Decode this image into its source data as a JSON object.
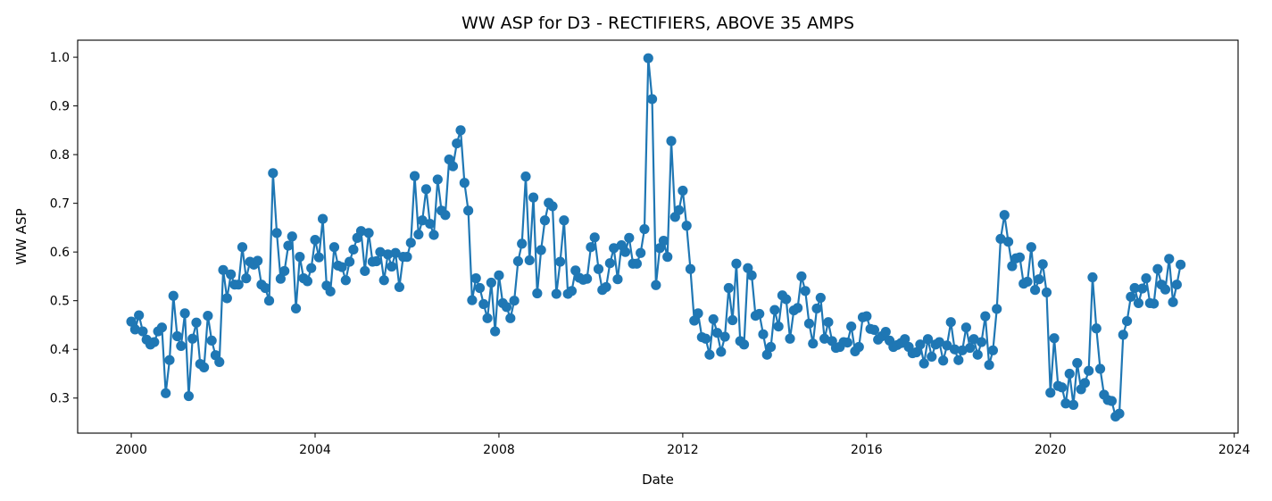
{
  "chart_data": {
    "type": "line",
    "title": "WW ASP for D3 - RECTIFIERS, ABOVE 35 AMPS",
    "xlabel": "Date",
    "ylabel": "WW ASP",
    "x_axis": "date",
    "xlim": [
      "1998-11-01",
      "2024-02-01"
    ],
    "ylim": [
      0.228,
      1.035
    ],
    "x_ticks": [
      "2000",
      "2004",
      "2008",
      "2012",
      "2016",
      "2020",
      "2024"
    ],
    "y_ticks": [
      "0.3",
      "0.4",
      "0.5",
      "0.6",
      "0.7",
      "0.8",
      "0.9",
      "1.0"
    ],
    "grid": false,
    "legend": "none",
    "markers": true,
    "series": [
      {
        "color": "#1f77b4",
        "x_start": "2000-01",
        "x_step": "month",
        "values": [
          0.457,
          0.441,
          0.47,
          0.437,
          0.42,
          0.41,
          0.415,
          0.437,
          0.445,
          0.31,
          0.378,
          0.51,
          0.427,
          0.407,
          0.474,
          0.304,
          0.422,
          0.455,
          0.37,
          0.363,
          0.469,
          0.418,
          0.388,
          0.374,
          0.563,
          0.505,
          0.554,
          0.533,
          0.533,
          0.61,
          0.546,
          0.58,
          0.574,
          0.582,
          0.533,
          0.526,
          0.5,
          0.762,
          0.639,
          0.545,
          0.561,
          0.613,
          0.632,
          0.484,
          0.59,
          0.546,
          0.54,
          0.567,
          0.625,
          0.589,
          0.668,
          0.531,
          0.519,
          0.61,
          0.572,
          0.569,
          0.542,
          0.58,
          0.605,
          0.629,
          0.643,
          0.561,
          0.639,
          0.58,
          0.581,
          0.6,
          0.542,
          0.595,
          0.57,
          0.598,
          0.528,
          0.59,
          0.59,
          0.619,
          0.756,
          0.636,
          0.665,
          0.729,
          0.658,
          0.635,
          0.749,
          0.685,
          0.676,
          0.79,
          0.776,
          0.823,
          0.85,
          0.742,
          0.685,
          0.501,
          0.546,
          0.526,
          0.493,
          0.464,
          0.537,
          0.437,
          0.552,
          0.495,
          0.487,
          0.464,
          0.5,
          0.581,
          0.617,
          0.755,
          0.583,
          0.712,
          0.515,
          0.604,
          0.665,
          0.701,
          0.694,
          0.514,
          0.58,
          0.665,
          0.514,
          0.52,
          0.562,
          0.547,
          0.543,
          0.545,
          0.61,
          0.63,
          0.565,
          0.522,
          0.528,
          0.577,
          0.608,
          0.544,
          0.614,
          0.6,
          0.629,
          0.576,
          0.576,
          0.598,
          0.647,
          0.998,
          0.914,
          0.532,
          0.608,
          0.623,
          0.59,
          0.828,
          0.672,
          0.686,
          0.726,
          0.654,
          0.565,
          0.459,
          0.474,
          0.425,
          0.422,
          0.389,
          0.462,
          0.434,
          0.395,
          0.426,
          0.526,
          0.46,
          0.576,
          0.417,
          0.41,
          0.567,
          0.552,
          0.469,
          0.473,
          0.431,
          0.389,
          0.405,
          0.481,
          0.447,
          0.511,
          0.503,
          0.422,
          0.48,
          0.485,
          0.55,
          0.52,
          0.453,
          0.412,
          0.484,
          0.506,
          0.422,
          0.456,
          0.417,
          0.403,
          0.405,
          0.415,
          0.414,
          0.447,
          0.396,
          0.405,
          0.466,
          0.468,
          0.442,
          0.44,
          0.42,
          0.427,
          0.436,
          0.418,
          0.405,
          0.409,
          0.413,
          0.421,
          0.405,
          0.392,
          0.394,
          0.41,
          0.371,
          0.421,
          0.385,
          0.41,
          0.415,
          0.377,
          0.408,
          0.456,
          0.4,
          0.378,
          0.398,
          0.445,
          0.403,
          0.421,
          0.389,
          0.415,
          0.468,
          0.368,
          0.398,
          0.483,
          0.627,
          0.676,
          0.621,
          0.571,
          0.587,
          0.589,
          0.535,
          0.539,
          0.61,
          0.522,
          0.544,
          0.575,
          0.517,
          0.311,
          0.423,
          0.325,
          0.322,
          0.289,
          0.35,
          0.286,
          0.372,
          0.318,
          0.331,
          0.356,
          0.548,
          0.443,
          0.36,
          0.307,
          0.296,
          0.294,
          0.262,
          0.268,
          0.43,
          0.458,
          0.508,
          0.526,
          0.495,
          0.525,
          0.546,
          0.495,
          0.494,
          0.565,
          0.533,
          0.523,
          0.586,
          0.497,
          0.533,
          0.574
        ]
      }
    ]
  }
}
